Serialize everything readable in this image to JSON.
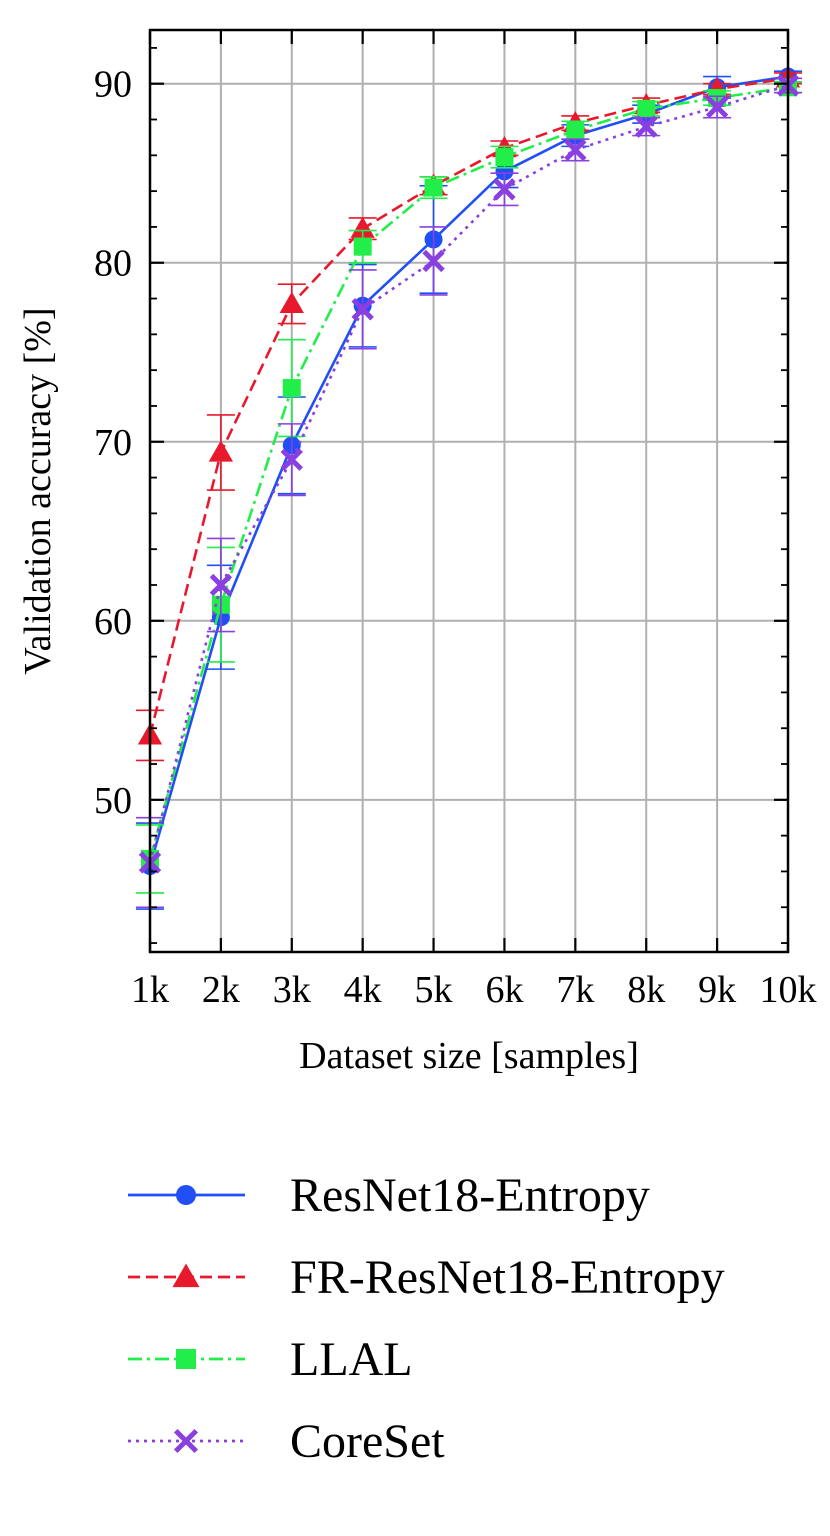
{
  "chart_data": {
    "type": "line",
    "xlabel": "Dataset size [samples]",
    "ylabel": "Validation accuracy [%]",
    "x": [
      1,
      2,
      3,
      4,
      5,
      6,
      7,
      8,
      9,
      10
    ],
    "x_tick_labels": [
      "1k",
      "2k",
      "3k",
      "4k",
      "5k",
      "6k",
      "7k",
      "8k",
      "9k",
      "10k"
    ],
    "xlim": [
      1,
      10
    ],
    "ylim": [
      41.5,
      93
    ],
    "y_ticks": [
      50,
      60,
      70,
      80,
      90
    ],
    "grid": true,
    "legend_position": "below",
    "series": [
      {
        "name": "ResNet18-Entropy",
        "color": "#1f4ff5",
        "line_style": "solid",
        "marker": "circle",
        "values": [
          46.3,
          60.2,
          69.8,
          77.6,
          81.3,
          85.1,
          87.1,
          88.3,
          89.8,
          90.4
        ],
        "errors": [
          2.4,
          2.9,
          2.7,
          2.3,
          3.0,
          0.9,
          0.6,
          0.5,
          0.6,
          0.3
        ]
      },
      {
        "name": "FR-ResNet18-Entropy",
        "color": "#e8192c",
        "line_style": "dashed",
        "marker": "triangle",
        "values": [
          53.6,
          69.4,
          77.7,
          81.9,
          84.3,
          86.4,
          87.8,
          88.8,
          89.7,
          90.3
        ],
        "errors": [
          1.4,
          2.1,
          1.1,
          0.6,
          0.5,
          0.4,
          0.4,
          0.4,
          0.3,
          0.3
        ]
      },
      {
        "name": "LLAL",
        "color": "#22ee4a",
        "line_style": "dashdot",
        "marker": "square",
        "values": [
          46.7,
          60.9,
          73.0,
          80.9,
          84.2,
          85.9,
          87.4,
          88.6,
          89.2,
          89.8
        ],
        "errors": [
          1.9,
          3.2,
          2.7,
          0.9,
          0.6,
          0.6,
          0.5,
          0.4,
          0.4,
          0.3
        ]
      },
      {
        "name": "CoreSet",
        "color": "#8a3fe0",
        "line_style": "dotted",
        "marker": "x",
        "values": [
          46.5,
          62.0,
          69.0,
          77.4,
          80.1,
          84.1,
          86.3,
          87.6,
          88.7,
          89.9
        ],
        "errors": [
          2.5,
          2.6,
          2.0,
          2.2,
          1.9,
          0.9,
          0.6,
          0.5,
          0.6,
          0.4
        ]
      }
    ]
  }
}
